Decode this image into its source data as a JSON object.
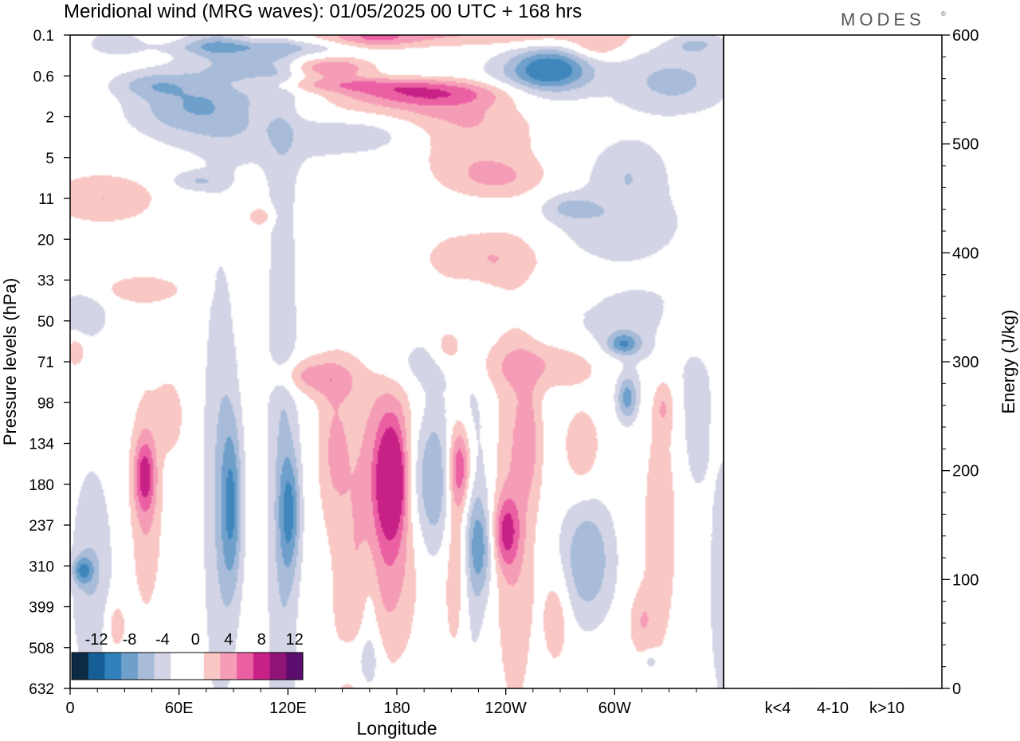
{
  "title": "Meridional wind (MRG waves):  01/05/2025  00 UTC  + 168 hrs",
  "brand": "MODES",
  "brand_mark": "©",
  "colors": {
    "neg4": "#d3d5e6",
    "neg8": "#a8bcd9",
    "neg12": "#6ea0cb",
    "neg16": "#3f86bd",
    "pos4": "#f9c7c4",
    "pos8": "#f59cb7",
    "pos12": "#eb5fa3",
    "pos16": "#c82185"
  },
  "chart_data": [
    {
      "type": "heatmap",
      "title": "Meridional wind (MRG waves):  01/05/2025  00 UTC  + 168 hrs",
      "xlabel": "Longitude",
      "ylabel": "Pressure levels (hPa)",
      "x_ticks": [
        "0",
        "60E",
        "120E",
        "180",
        "120W",
        "60W"
      ],
      "x_tick_values": [
        0,
        60,
        120,
        180,
        240,
        300
      ],
      "xlim": [
        0,
        360
      ],
      "y_ticks": [
        "0.1",
        "0.6",
        "2",
        "5",
        "11",
        "20",
        "33",
        "50",
        "71",
        "98",
        "134",
        "180",
        "237",
        "310",
        "399",
        "508",
        "632"
      ],
      "colorbar": {
        "labels": [
          "-12",
          "-8",
          "-4",
          "0",
          "4",
          "8",
          "12"
        ],
        "levels": [
          -14,
          -12,
          -10,
          -8,
          -6,
          -4,
          -2,
          0,
          2,
          4,
          6,
          8,
          10,
          12,
          14
        ],
        "colors": [
          "#0d2a45",
          "#155f96",
          "#2f80bb",
          "#6ea0cb",
          "#a8bcd9",
          "#d3d5e6",
          "#ffffff",
          "#ffffff",
          "#f9c7c4",
          "#f59cb7",
          "#eb5fa3",
          "#c82185",
          "#8f1578",
          "#5c0d6e"
        ]
      },
      "blobs": [
        {
          "lon": 120,
          "lev": 0.5,
          "dlon": 35,
          "dlev": 0.2,
          "amp": -5
        },
        {
          "lon": 225,
          "lev": 0.1,
          "dlon": 65,
          "dlev": 0.2,
          "amp": 5
        },
        {
          "lon": 103,
          "lev": 0.25,
          "dlon": 35,
          "dlev": 0.06,
          "amp": -4.5
        },
        {
          "lon": 167,
          "lev": 0.14,
          "dlon": 17,
          "dlev": 0.16,
          "amp": 6
        },
        {
          "lon": 142,
          "lev": 0.5,
          "dlon": 18,
          "dlev": 0.1,
          "amp": 12
        },
        {
          "lon": 150,
          "lev": 0.9,
          "dlon": 35,
          "dlev": 0.2,
          "amp": 7
        },
        {
          "lon": 197,
          "lev": 1.2,
          "dlon": 35,
          "dlev": 0.3,
          "amp": 9
        },
        {
          "lon": 170,
          "lev": 1.8,
          "dlon": 45,
          "dlev": 0.5,
          "amp": 5
        },
        {
          "lon": 221,
          "lev": 3.5,
          "dlon": 25,
          "dlev": 2,
          "amp": 4.5
        },
        {
          "lon": 64,
          "lev": 1.7,
          "dlon": 22,
          "dlev": 0.8,
          "amp": -6
        },
        {
          "lon": 45,
          "lev": 0.9,
          "dlon": 15,
          "dlev": 0.3,
          "amp": -5
        },
        {
          "lon": 25,
          "lev": 0.2,
          "dlon": 10,
          "dlev": 0.1,
          "amp": -4.5
        },
        {
          "lon": 80,
          "lev": 0.2,
          "dlon": 12,
          "dlev": 0.15,
          "amp": -5
        },
        {
          "lon": 265,
          "lev": 0.5,
          "dlon": 14,
          "dlev": 0.2,
          "amp": -10
        },
        {
          "lon": 258,
          "lev": 0.7,
          "dlon": 22,
          "dlev": 0.4,
          "amp": -6
        },
        {
          "lon": 332,
          "lev": 0.8,
          "dlon": 22,
          "dlev": 0.5,
          "amp": -6
        },
        {
          "lon": 345,
          "lev": 0.2,
          "dlon": 12,
          "dlev": 0.1,
          "amp": -5
        },
        {
          "lon": 290,
          "lev": 0.25,
          "dlon": 10,
          "dlev": 0.1,
          "amp": 4.5
        },
        {
          "lon": 162,
          "lev": 2.8,
          "dlon": 25,
          "dlev": 1.2,
          "amp": -4.5
        },
        {
          "lon": 98,
          "lev": 1.9,
          "dlon": 30,
          "dlev": 1.5,
          "amp": -4.5
        },
        {
          "lon": 308,
          "lev": 7,
          "dlon": 15,
          "dlev": 3,
          "amp": -4.5
        },
        {
          "lon": 302,
          "lev": 17,
          "dlon": 25,
          "dlev": 6,
          "amp": -4.5
        },
        {
          "lon": 275,
          "lev": 13,
          "dlon": 10,
          "dlev": 2,
          "amp": -4.5
        },
        {
          "lon": 70,
          "lev": 8.5,
          "dlon": 10,
          "dlev": 1,
          "amp": -4.5
        },
        {
          "lon": 18,
          "lev": 11,
          "dlon": 20,
          "dlev": 3,
          "amp": 5
        },
        {
          "lon": 228,
          "lev": 26,
          "dlon": 22,
          "dlev": 6,
          "amp": 5
        },
        {
          "lon": 235,
          "lev": 8,
          "dlon": 18,
          "dlev": 2,
          "amp": 4.5
        },
        {
          "lon": 40,
          "lev": 37,
          "dlon": 15,
          "dlev": 4,
          "amp": 4.5
        },
        {
          "lon": 7,
          "lev": 48,
          "dlon": 10,
          "dlev": 8,
          "amp": -4.5
        },
        {
          "lon": 105,
          "lev": 15,
          "dlon": 5,
          "dlev": 1.5,
          "amp": 4.5
        },
        {
          "lon": 317,
          "lev": 57,
          "dlon": 28,
          "dlev": 16,
          "amp": -5
        },
        {
          "lon": 305,
          "lev": 62,
          "dlon": 6,
          "dlev": 4,
          "amp": -9
        },
        {
          "lon": 346,
          "lev": 57,
          "dlon": 22,
          "dlev": 10,
          "amp": 4.5
        },
        {
          "lon": 264,
          "lev": 73,
          "dlon": 30,
          "dlev": 10,
          "amp": 5
        },
        {
          "lon": 144,
          "lev": 82,
          "dlon": 12,
          "dlev": 10,
          "amp": 4.5
        },
        {
          "lon": 186,
          "lev": 72,
          "dlon": 18,
          "dlev": 12,
          "amp": -4.5
        },
        {
          "lon": 208,
          "lev": 63,
          "dlon": 6,
          "dlev": 6,
          "amp": 4.5
        },
        {
          "lon": 3,
          "lev": 65,
          "dlon": 4,
          "dlev": 6,
          "amp": 4.5
        },
        {
          "lon": 178,
          "lev": 190,
          "dlon": 10,
          "dlev": 110,
          "amp": 10
        },
        {
          "lon": 177,
          "lev": 175,
          "dlon": 5,
          "dlev": 40,
          "amp": 13
        },
        {
          "lon": 200,
          "lev": 175,
          "dlon": 12,
          "dlev": 60,
          "amp": -9
        },
        {
          "lon": 215,
          "lev": 160,
          "dlon": 5,
          "dlev": 35,
          "amp": 12
        },
        {
          "lon": 213,
          "lev": 260,
          "dlon": 5,
          "dlev": 120,
          "amp": 7
        },
        {
          "lon": 221,
          "lev": 230,
          "dlon": 6,
          "dlev": 150,
          "amp": -4.5
        },
        {
          "lon": 226,
          "lev": 280,
          "dlon": 5,
          "dlev": 60,
          "amp": -7
        },
        {
          "lon": 240,
          "lev": 250,
          "dlon": 5,
          "dlev": 40,
          "amp": 9
        },
        {
          "lon": 245,
          "lev": 230,
          "dlon": 8,
          "dlev": 170,
          "amp": 5
        },
        {
          "lon": 253,
          "lev": 130,
          "dlon": 5,
          "dlev": 40,
          "amp": 4.5
        },
        {
          "lon": 282,
          "lev": 140,
          "dlon": 7,
          "dlev": 30,
          "amp": 4.5
        },
        {
          "lon": 285,
          "lev": 300,
          "dlon": 10,
          "dlev": 80,
          "amp": -8
        },
        {
          "lon": 307,
          "lev": 95,
          "dlon": 4,
          "dlev": 12,
          "amp": -9
        },
        {
          "lon": 327,
          "lev": 100,
          "dlon": 4,
          "dlev": 15,
          "amp": 4.5
        },
        {
          "lon": 325,
          "lev": 250,
          "dlon": 6,
          "dlev": 120,
          "amp": 5
        },
        {
          "lon": 345,
          "lev": 110,
          "dlon": 5,
          "dlev": 40,
          "amp": -4.5
        },
        {
          "lon": 268,
          "lev": 430,
          "dlon": 5,
          "dlev": 80,
          "amp": 4.5
        },
        {
          "lon": 315,
          "lev": 440,
          "dlon": 5,
          "dlev": 60,
          "amp": 4.5
        },
        {
          "lon": 125,
          "lev": 80,
          "dlon": 12,
          "dlev": 8,
          "amp": 4.5
        },
        {
          "lon": 117,
          "lev": 180,
          "dlon": 6,
          "dlev": 250,
          "amp": -5
        },
        {
          "lon": 121,
          "lev": 220,
          "dlon": 4,
          "dlev": 60,
          "amp": -9
        },
        {
          "lon": 41,
          "lev": 170,
          "dlon": 4,
          "dlev": 30,
          "amp": 9
        },
        {
          "lon": 42,
          "lev": 200,
          "dlon": 6,
          "dlev": 100,
          "amp": 5
        },
        {
          "lon": 55,
          "lev": 110,
          "dlon": 5,
          "dlev": 20,
          "amp": 4.5
        },
        {
          "lon": 12,
          "lev": 330,
          "dlon": 8,
          "dlev": 150,
          "amp": -5
        },
        {
          "lon": 7,
          "lev": 320,
          "dlon": 4,
          "dlev": 20,
          "amp": -9
        },
        {
          "lon": 25,
          "lev": 450,
          "dlon": 4,
          "dlev": 50,
          "amp": 4.5
        },
        {
          "lon": 158,
          "lev": 400,
          "dlon": 10,
          "dlev": 350,
          "amp": 4.5
        },
        {
          "lon": 165,
          "lev": 480,
          "dlon": 4,
          "dlev": 200,
          "amp": -4.5
        },
        {
          "lon": 83,
          "lev": 185,
          "dlon": 7,
          "dlev": 160,
          "amp": -5
        },
        {
          "lon": 89,
          "lev": 210,
          "dlon": 4,
          "dlev": 80,
          "amp": -9
        },
        {
          "lon": 363,
          "lev": 350,
          "dlon": 8,
          "dlev": 200,
          "amp": -4.5
        },
        {
          "lon": 145,
          "lev": 140,
          "dlon": 6,
          "dlev": 50,
          "amp": 4.5
        },
        {
          "lon": 160,
          "lev": 550,
          "dlon": 8,
          "dlev": 60,
          "amp": -4.5
        },
        {
          "lon": 320,
          "lev": 550,
          "dlon": 3,
          "dlev": 20,
          "amp": -4.5
        }
      ]
    },
    {
      "type": "bar",
      "title": "",
      "xlabel": "",
      "ylabel": "Energy (J/kg)",
      "categories": [
        "k<4",
        "4-10",
        "k>10"
      ],
      "values": [
        0,
        0,
        0
      ],
      "ylim": [
        0,
        600
      ],
      "y_ticks": [
        0,
        100,
        200,
        300,
        400,
        500,
        600
      ]
    }
  ]
}
